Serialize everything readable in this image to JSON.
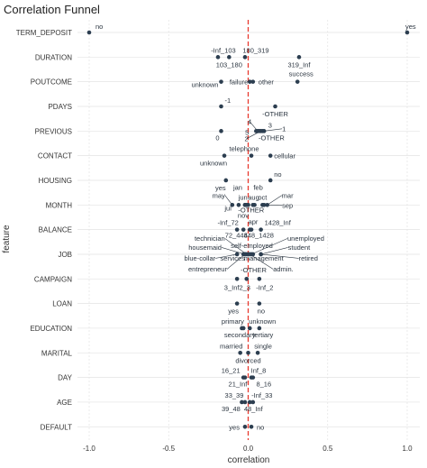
{
  "chart_data": {
    "type": "scatter",
    "title": "Correlation Funnel",
    "xlabel": "correlation",
    "ylabel": "feature",
    "xlim": [
      -1.0,
      1.0
    ],
    "xticks": [
      "-1.0",
      "-0.5",
      "0.0",
      "0.5",
      "1.0"
    ],
    "xtick_values": [
      -1.0,
      -0.5,
      0.0,
      0.5,
      1.0
    ],
    "reference_line": {
      "x": 0.0,
      "style": "dashed",
      "color": "#e8392e"
    },
    "point_color": "#2c3e50",
    "grid": true,
    "features": [
      "TERM_DEPOSIT",
      "DURATION",
      "POUTCOME",
      "PDAYS",
      "PREVIOUS",
      "CONTACT",
      "HOUSING",
      "MONTH",
      "BALANCE",
      "JOB",
      "CAMPAIGN",
      "LOAN",
      "EDUCATION",
      "MARITAL",
      "DAY",
      "AGE",
      "DEFAULT"
    ],
    "points": [
      {
        "feature": "TERM_DEPOSIT",
        "label": "no",
        "x": -1.0
      },
      {
        "feature": "TERM_DEPOSIT",
        "label": "yes",
        "x": 1.0
      },
      {
        "feature": "DURATION",
        "label": "-Inf_103",
        "x": -0.19
      },
      {
        "feature": "DURATION",
        "label": "103_180",
        "x": -0.12
      },
      {
        "feature": "DURATION",
        "label": "180_319",
        "x": -0.02
      },
      {
        "feature": "DURATION",
        "label": "319_Inf",
        "x": 0.32
      },
      {
        "feature": "POUTCOME",
        "label": "success",
        "x": 0.31
      },
      {
        "feature": "POUTCOME",
        "label": "unknown",
        "x": -0.17
      },
      {
        "feature": "POUTCOME",
        "label": "failure",
        "x": 0.01
      },
      {
        "feature": "POUTCOME",
        "label": "other",
        "x": 0.03
      },
      {
        "feature": "PDAYS",
        "label": "-1",
        "x": -0.17
      },
      {
        "feature": "PDAYS",
        "label": "-OTHER",
        "x": 0.17
      },
      {
        "feature": "PREVIOUS",
        "label": "0",
        "x": -0.17
      },
      {
        "feature": "PREVIOUS",
        "label": "5",
        "x": 0.05
      },
      {
        "feature": "PREVIOUS",
        "label": "4",
        "x": 0.06
      },
      {
        "feature": "PREVIOUS",
        "label": "3",
        "x": 0.07
      },
      {
        "feature": "PREVIOUS",
        "label": "2",
        "x": 0.08
      },
      {
        "feature": "PREVIOUS",
        "label": "1",
        "x": 0.1
      },
      {
        "feature": "PREVIOUS",
        "label": "-OTHER",
        "x": 0.09
      },
      {
        "feature": "CONTACT",
        "label": "unknown",
        "x": -0.15
      },
      {
        "feature": "CONTACT",
        "label": "telephone",
        "x": 0.02
      },
      {
        "feature": "CONTACT",
        "label": "cellular",
        "x": 0.14
      },
      {
        "feature": "HOUSING",
        "label": "yes",
        "x": -0.14
      },
      {
        "feature": "HOUSING",
        "label": "no",
        "x": 0.14
      },
      {
        "feature": "MONTH",
        "label": "may",
        "x": -0.1
      },
      {
        "feature": "MONTH",
        "label": "jul",
        "x": -0.06
      },
      {
        "feature": "MONTH",
        "label": "jan",
        "x": -0.02
      },
      {
        "feature": "MONTH",
        "label": "jun",
        "x": -0.01
      },
      {
        "feature": "MONTH",
        "label": "nov",
        "x": -0.02
      },
      {
        "feature": "MONTH",
        "label": "aug",
        "x": 0.0
      },
      {
        "feature": "MONTH",
        "label": "feb",
        "x": 0.04
      },
      {
        "feature": "MONTH",
        "label": "oct",
        "x": 0.09
      },
      {
        "feature": "MONTH",
        "label": "mar",
        "x": 0.12
      },
      {
        "feature": "MONTH",
        "label": "sep",
        "x": 0.1
      },
      {
        "feature": "MONTH",
        "label": "-OTHER",
        "x": 0.03
      },
      {
        "feature": "BALANCE",
        "label": "-Inf_72",
        "x": -0.07
      },
      {
        "feature": "BALANCE",
        "label": "72_448",
        "x": -0.03
      },
      {
        "feature": "BALANCE",
        "label": "apr",
        "x": 0.02
      },
      {
        "feature": "BALANCE",
        "label": "448_1428",
        "x": 0.01
      },
      {
        "feature": "BALANCE",
        "label": "1428_Inf",
        "x": 0.08
      },
      {
        "feature": "JOB",
        "label": "technician",
        "x": -0.01
      },
      {
        "feature": "JOB",
        "label": "housemaid",
        "x": -0.02
      },
      {
        "feature": "JOB",
        "label": "blue-collar",
        "x": -0.07
      },
      {
        "feature": "JOB",
        "label": "entrepreneur",
        "x": -0.02
      },
      {
        "feature": "JOB",
        "label": "services",
        "x": -0.03
      },
      {
        "feature": "JOB",
        "label": "self-employed",
        "x": 0.0
      },
      {
        "feature": "JOB",
        "label": "unemployed",
        "x": 0.02
      },
      {
        "feature": "JOB",
        "label": "student",
        "x": 0.08
      },
      {
        "feature": "JOB",
        "label": "management",
        "x": 0.03
      },
      {
        "feature": "JOB",
        "label": "retired",
        "x": 0.08
      },
      {
        "feature": "JOB",
        "label": "admin.",
        "x": 0.01
      },
      {
        "feature": "JOB",
        "label": "-OTHER",
        "x": 0.0
      },
      {
        "feature": "CAMPAIGN",
        "label": "3_Inf",
        "x": -0.07
      },
      {
        "feature": "CAMPAIGN",
        "label": "2_3",
        "x": -0.01
      },
      {
        "feature": "CAMPAIGN",
        "label": "-Inf_2",
        "x": 0.07
      },
      {
        "feature": "LOAN",
        "label": "yes",
        "x": -0.07
      },
      {
        "feature": "LOAN",
        "label": "no",
        "x": 0.07
      },
      {
        "feature": "EDUCATION",
        "label": "primary",
        "x": -0.04
      },
      {
        "feature": "EDUCATION",
        "label": "secondary",
        "x": -0.03
      },
      {
        "feature": "EDUCATION",
        "label": "unknown",
        "x": 0.01
      },
      {
        "feature": "EDUCATION",
        "label": "tertiary",
        "x": 0.07
      },
      {
        "feature": "MARITAL",
        "label": "married",
        "x": -0.05
      },
      {
        "feature": "MARITAL",
        "label": "divorced",
        "x": 0.0
      },
      {
        "feature": "MARITAL",
        "label": "single",
        "x": 0.06
      },
      {
        "feature": "DAY",
        "label": "16_21",
        "x": -0.03
      },
      {
        "feature": "DAY",
        "label": "21_Inf",
        "x": -0.02
      },
      {
        "feature": "DAY",
        "label": "Inf_8",
        "x": 0.02
      },
      {
        "feature": "DAY",
        "label": "8_16",
        "x": 0.03
      },
      {
        "feature": "AGE",
        "label": "33_39",
        "x": -0.02
      },
      {
        "feature": "AGE",
        "label": "39_48",
        "x": -0.04
      },
      {
        "feature": "AGE",
        "label": "48_Inf",
        "x": 0.01
      },
      {
        "feature": "AGE",
        "label": "-Inf_33",
        "x": 0.03
      },
      {
        "feature": "DEFAULT",
        "label": "yes",
        "x": -0.02
      },
      {
        "feature": "DEFAULT",
        "label": "no",
        "x": 0.02
      }
    ]
  }
}
